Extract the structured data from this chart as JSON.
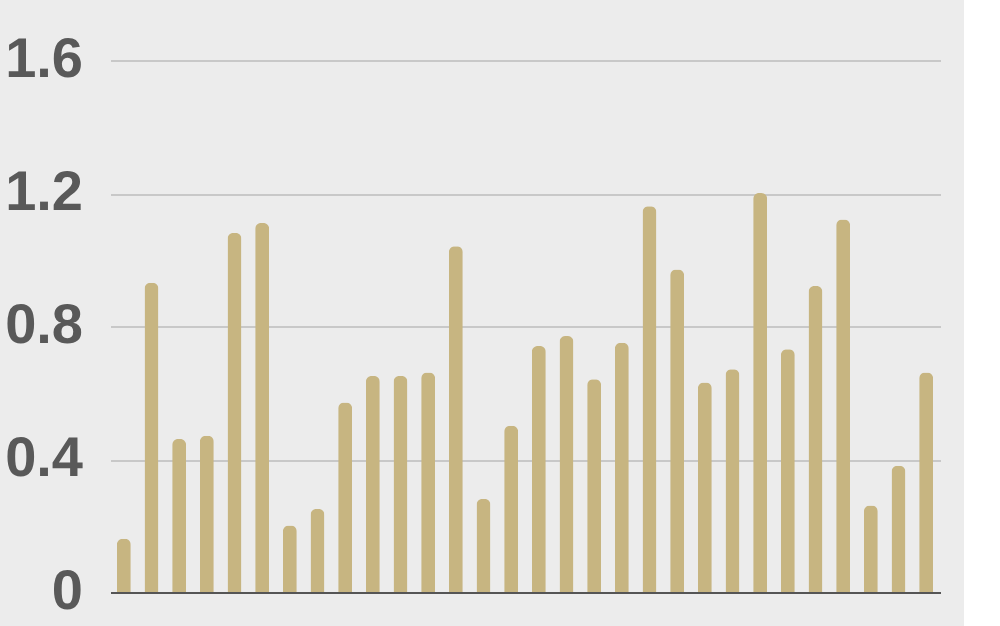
{
  "chart_data": {
    "type": "bar",
    "categories": [
      null,
      null,
      null,
      null,
      null,
      null,
      null,
      null,
      null,
      null,
      null,
      null,
      null,
      null,
      null,
      null,
      null,
      null,
      null,
      null,
      null,
      null,
      null,
      null,
      null,
      null,
      null,
      null,
      null,
      null
    ],
    "values": [
      0.16,
      0.93,
      0.46,
      0.47,
      1.08,
      1.11,
      0.2,
      0.25,
      0.57,
      0.65,
      0.65,
      0.66,
      1.04,
      0.28,
      0.5,
      0.74,
      0.77,
      0.64,
      0.75,
      1.16,
      0.97,
      0.63,
      0.67,
      1.2,
      0.73,
      0.92,
      1.12,
      0.26,
      0.38,
      0.66
    ],
    "color": "#c7b581",
    "ylim": [
      0,
      1.6
    ],
    "yticks": [
      0,
      0.4,
      0.8,
      1.2,
      1.6
    ],
    "grid": "y",
    "tick_labels": "y"
  }
}
